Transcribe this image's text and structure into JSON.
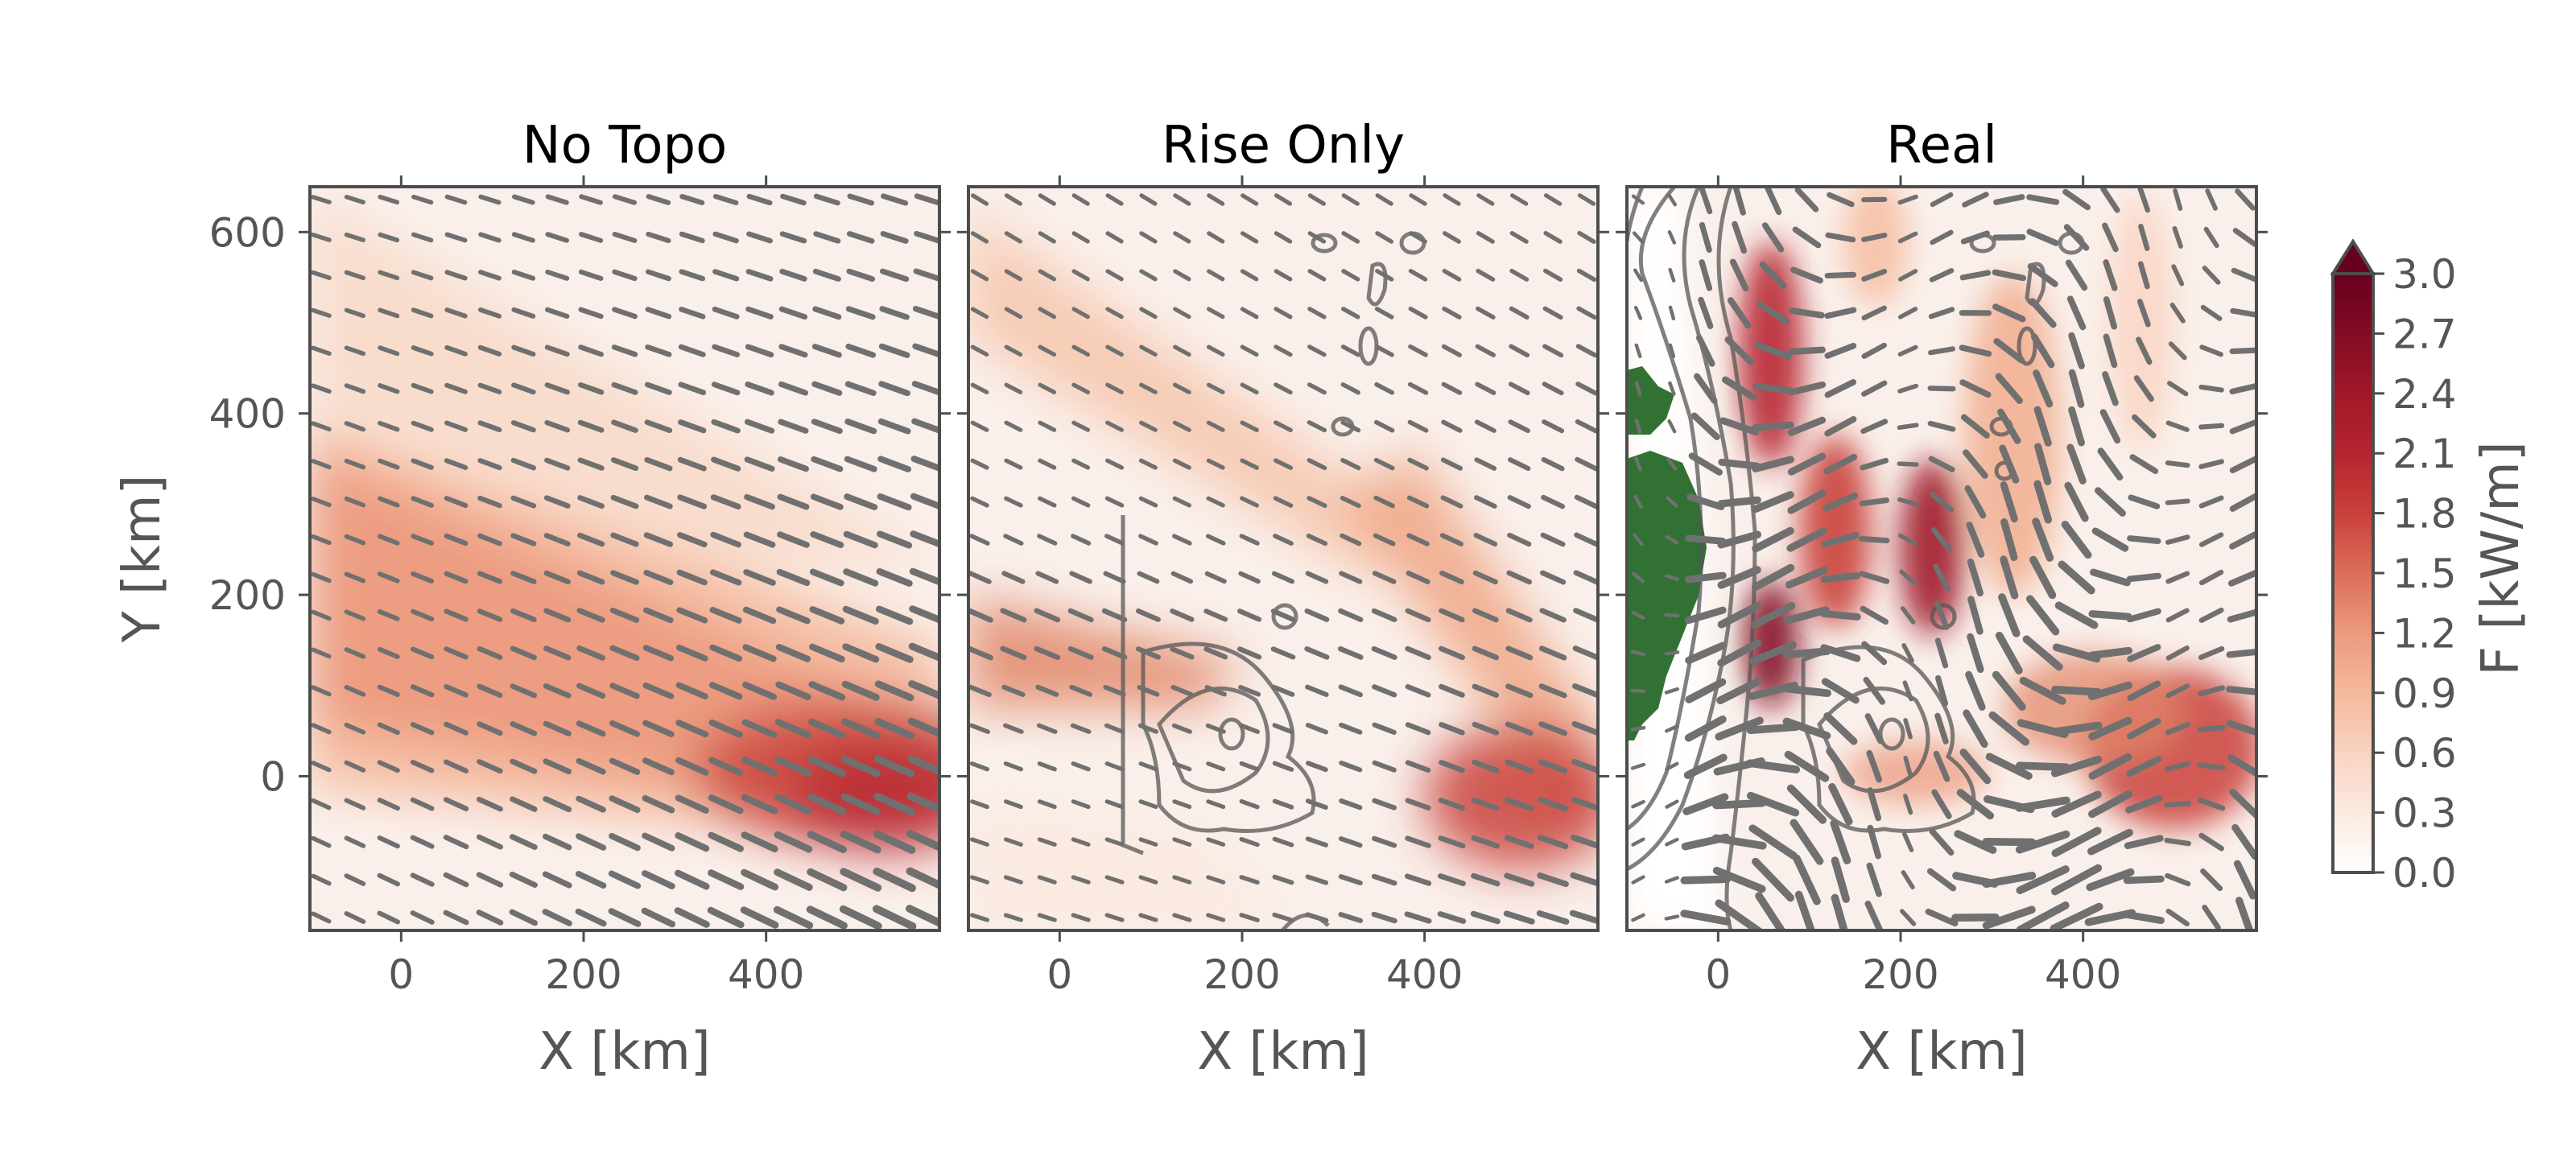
{
  "chart_data": {
    "type": "heatmap",
    "panels": [
      {
        "title": "No Topo",
        "topography": "none"
      },
      {
        "title": "Rise Only",
        "topography": "rise"
      },
      {
        "title": "Real",
        "topography": "real"
      }
    ],
    "xlabel": "X [km]",
    "ylabel": "Y [km]",
    "xlim": [
      -100,
      590
    ],
    "ylim": [
      -170,
      650
    ],
    "xticks": [
      0,
      200,
      400
    ],
    "xtick_labels": [
      "0",
      "200",
      "400"
    ],
    "yticks": [
      0,
      200,
      400,
      600
    ],
    "ytick_labels": [
      "0",
      "200",
      "400",
      "600"
    ],
    "colorbar": {
      "label": "F [kW/m]",
      "min": 0.0,
      "max": 3.0,
      "extend": "max",
      "ticks": [
        0.0,
        0.3,
        0.6,
        0.9,
        1.2,
        1.5,
        1.8,
        2.1,
        2.4,
        2.7,
        3.0
      ],
      "tick_labels": [
        "0.0",
        "0.3",
        "0.6",
        "0.9",
        "1.2",
        "1.5",
        "1.8",
        "2.1",
        "2.4",
        "2.7",
        "3.0"
      ],
      "colormap": [
        "#ffffff",
        "#fbe5d6",
        "#f5b99b",
        "#e2876a",
        "#c9403b",
        "#a01728",
        "#67001f"
      ]
    },
    "overlays": {
      "vectors": "energy flux direction and magnitude (gray arrows)",
      "contours": "bathymetry (gray lines)",
      "land_color": "#317234"
    },
    "colors": {
      "arrow": "#707070",
      "contour": "#555555",
      "frame": "#4d4d4d",
      "land": "#317234"
    }
  }
}
